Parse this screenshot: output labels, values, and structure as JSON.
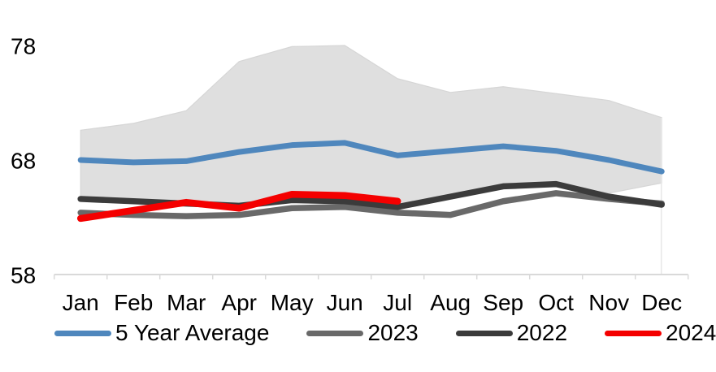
{
  "chart_data": {
    "type": "line",
    "title": "",
    "xlabel": "",
    "ylabel": "",
    "categories": [
      "Jan",
      "Feb",
      "Mar",
      "Apr",
      "May",
      "Jun",
      "Jul",
      "Aug",
      "Sep",
      "Oct",
      "Nov",
      "Dec"
    ],
    "y_ticks": [
      58,
      68,
      78
    ],
    "ylim": [
      58,
      78
    ],
    "grid": false,
    "legend_position": "bottom",
    "colors": {
      "band_fill": "#dfdfdf",
      "band_edge": "#d6d6d6",
      "axis": "#d9d9d9",
      "guideline": "#e7e7e7",
      "blue": "#4f87bd",
      "gray": "#696969",
      "dark": "#3b3b3b",
      "red": "#f40000"
    },
    "band": {
      "upper": [
        70.6,
        71.2,
        72.3,
        76.6,
        77.9,
        78.0,
        75.1,
        73.9,
        74.4,
        73.8,
        73.2,
        71.7
      ],
      "lower": [
        64.8,
        64.5,
        64.3,
        64.1,
        64.6,
        64.5,
        64.0,
        64.9,
        65.7,
        65.8,
        65.1,
        66.0
      ]
    },
    "series": [
      {
        "name": "5 Year Average",
        "color": "#4f87bd",
        "width": 7,
        "values": [
          68.0,
          67.8,
          67.9,
          68.7,
          69.3,
          69.5,
          68.4,
          68.8,
          69.2,
          68.8,
          68.0,
          67.0
        ]
      },
      {
        "name": "2023",
        "color": "#696969",
        "width": 7.5,
        "values": [
          63.4,
          63.2,
          63.1,
          63.2,
          63.8,
          63.9,
          63.4,
          63.2,
          64.4,
          65.1,
          64.6,
          64.2
        ]
      },
      {
        "name": "2022",
        "color": "#3b3b3b",
        "width": 7.5,
        "values": [
          64.6,
          64.4,
          64.2,
          64.0,
          64.5,
          64.4,
          63.9,
          64.8,
          65.7,
          65.9,
          64.8,
          64.1
        ]
      },
      {
        "name": "2024",
        "color": "#f40000",
        "width": 8.5,
        "values": [
          62.9,
          63.6,
          64.3,
          63.8,
          65.0,
          64.9,
          64.4
        ]
      }
    ]
  }
}
